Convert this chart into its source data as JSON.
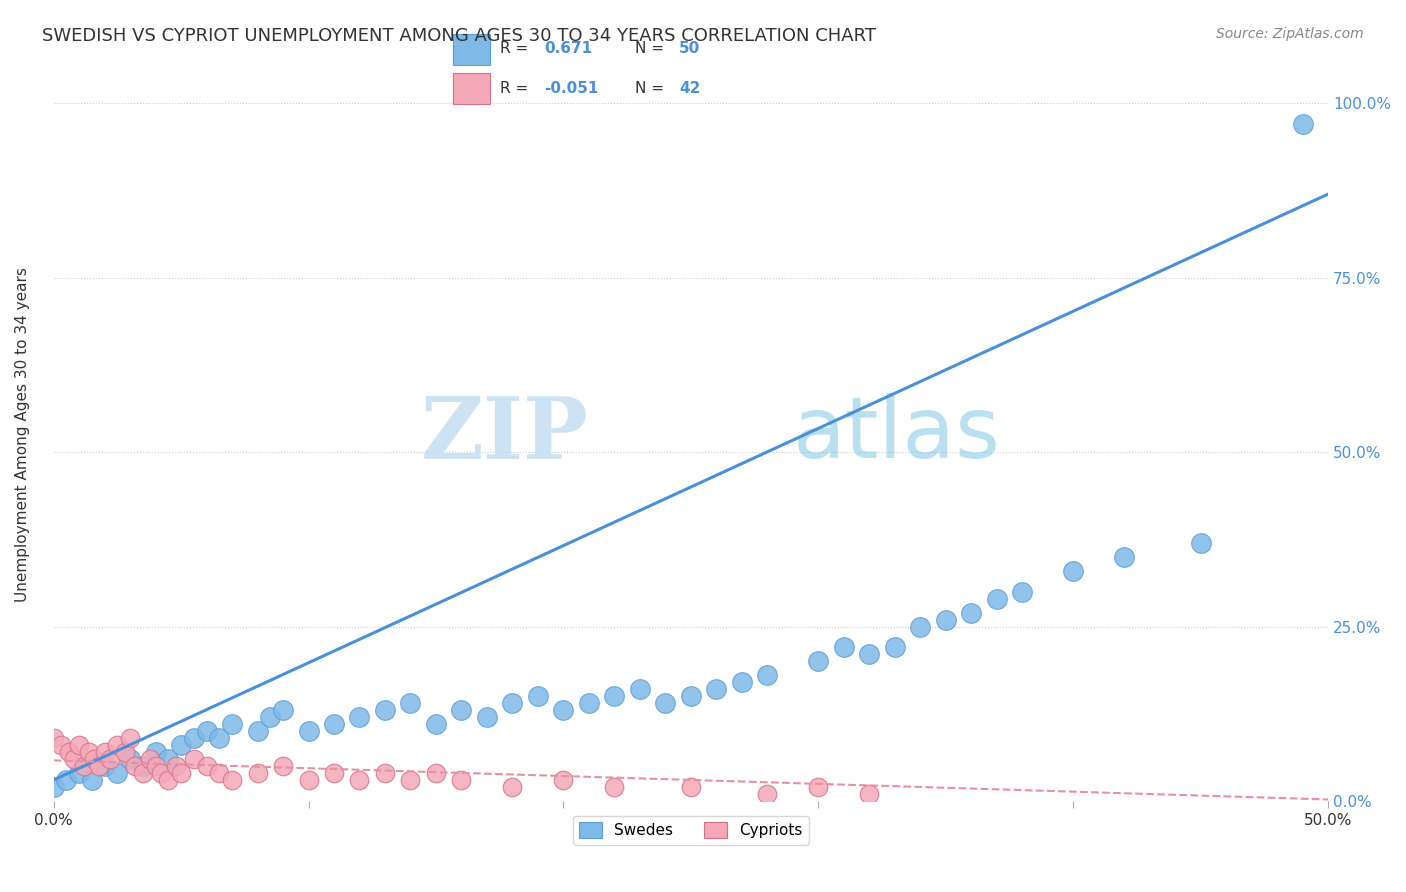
{
  "title": "SWEDISH VS CYPRIOT UNEMPLOYMENT AMONG AGES 30 TO 34 YEARS CORRELATION CHART",
  "source": "Source: ZipAtlas.com",
  "ylabel": "Unemployment Among Ages 30 to 34 years",
  "xlim": [
    0,
    0.5
  ],
  "ylim": [
    0,
    1.05
  ],
  "yticks": [
    0.0,
    0.25,
    0.5,
    0.75,
    1.0
  ],
  "background_color": "#ffffff",
  "grid_color": "#cccccc",
  "watermark_zip": "ZIP",
  "watermark_atlas": "atlas",
  "blue_color": "#7eb9e8",
  "pink_color": "#f4a8b8",
  "blue_line_color": "#4a90d9",
  "pink_line_color": "#e88fa0",
  "blue_edge_color": "#5a9fd4",
  "pink_edge_color": "#d4708a",
  "legend_R_blue": "0.671",
  "legend_N_blue": "50",
  "legend_R_pink": "-0.051",
  "legend_N_pink": "42",
  "swedes_x": [
    0.0,
    0.005,
    0.01,
    0.015,
    0.02,
    0.025,
    0.03,
    0.035,
    0.04,
    0.045,
    0.05,
    0.055,
    0.06,
    0.065,
    0.07,
    0.08,
    0.085,
    0.09,
    0.1,
    0.11,
    0.12,
    0.13,
    0.14,
    0.15,
    0.16,
    0.17,
    0.18,
    0.19,
    0.2,
    0.21,
    0.22,
    0.23,
    0.24,
    0.25,
    0.26,
    0.27,
    0.28,
    0.3,
    0.31,
    0.32,
    0.33,
    0.34,
    0.35,
    0.36,
    0.37,
    0.38,
    0.4,
    0.42,
    0.45,
    0.49
  ],
  "swedes_y": [
    0.02,
    0.03,
    0.04,
    0.03,
    0.05,
    0.04,
    0.06,
    0.05,
    0.07,
    0.06,
    0.08,
    0.09,
    0.1,
    0.09,
    0.11,
    0.1,
    0.12,
    0.13,
    0.1,
    0.11,
    0.12,
    0.13,
    0.14,
    0.11,
    0.13,
    0.12,
    0.14,
    0.15,
    0.13,
    0.14,
    0.15,
    0.16,
    0.14,
    0.15,
    0.16,
    0.17,
    0.18,
    0.2,
    0.22,
    0.21,
    0.22,
    0.25,
    0.26,
    0.27,
    0.29,
    0.3,
    0.33,
    0.35,
    0.37,
    0.97
  ],
  "cypriots_x": [
    0.0,
    0.003,
    0.006,
    0.008,
    0.01,
    0.012,
    0.014,
    0.016,
    0.018,
    0.02,
    0.022,
    0.025,
    0.028,
    0.03,
    0.032,
    0.035,
    0.038,
    0.04,
    0.042,
    0.045,
    0.048,
    0.05,
    0.055,
    0.06,
    0.065,
    0.07,
    0.08,
    0.09,
    0.1,
    0.11,
    0.12,
    0.13,
    0.14,
    0.15,
    0.16,
    0.18,
    0.2,
    0.22,
    0.25,
    0.28,
    0.3,
    0.32
  ],
  "cypriots_y": [
    0.09,
    0.08,
    0.07,
    0.06,
    0.08,
    0.05,
    0.07,
    0.06,
    0.05,
    0.07,
    0.06,
    0.08,
    0.07,
    0.09,
    0.05,
    0.04,
    0.06,
    0.05,
    0.04,
    0.03,
    0.05,
    0.04,
    0.06,
    0.05,
    0.04,
    0.03,
    0.04,
    0.05,
    0.03,
    0.04,
    0.03,
    0.04,
    0.03,
    0.04,
    0.03,
    0.02,
    0.03,
    0.02,
    0.02,
    0.01,
    0.02,
    0.01
  ],
  "blue_trendline_x": [
    0.0,
    0.5
  ],
  "blue_trendline_y": [
    0.03,
    0.87
  ],
  "pink_trendline_x": [
    0.0,
    0.5
  ],
  "pink_trendline_y": [
    0.058,
    0.002
  ]
}
